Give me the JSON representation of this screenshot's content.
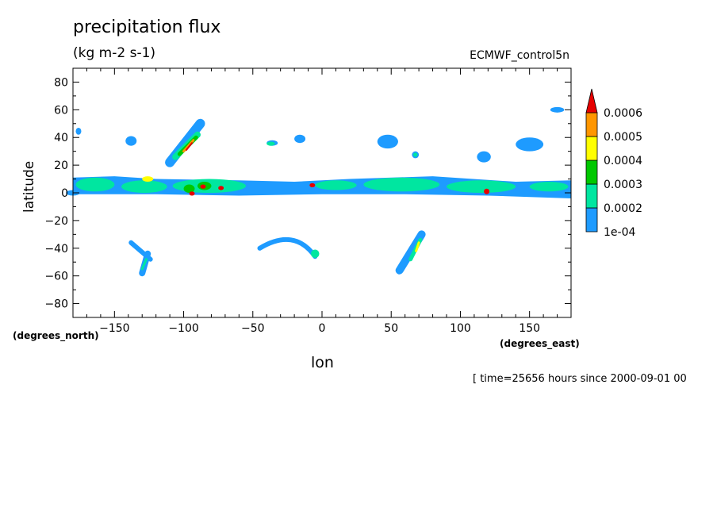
{
  "chart_data": {
    "type": "heatmap",
    "title": "precipitation flux",
    "units": "(kg m-2 s-1)",
    "dataset": "ECMWF_control5n",
    "xlabel": "lon",
    "ylabel": "latitude",
    "x_unit": "(degrees_east)",
    "y_unit": "(degrees_north)",
    "timestamp": "[ time=25656 hours since 2000-09-01 00",
    "xlim": [
      -180,
      180
    ],
    "ylim": [
      -90,
      90
    ],
    "x_ticks": [
      -150,
      -100,
      -50,
      0,
      50,
      100,
      150
    ],
    "y_ticks": [
      80,
      60,
      40,
      20,
      0,
      -20,
      -40,
      -60,
      -80
    ],
    "colorbar": {
      "levels": [
        "1e-04",
        "0.0002",
        "0.0003",
        "0.0004",
        "0.0005",
        "0.0006"
      ],
      "colors": [
        "#1e9bff",
        "#00e6a0",
        "#00c800",
        "#ffff00",
        "#ff9600",
        "#e60000"
      ]
    },
    "features": [
      {
        "region": "equatorial-band-west",
        "lon": [
          -180,
          -10
        ],
        "lat": [
          -3,
          12
        ],
        "peak": "0.0006"
      },
      {
        "region": "equatorial-band-east",
        "lon": [
          -10,
          180
        ],
        "lat": [
          -3,
          12
        ],
        "peak": "0.0006"
      },
      {
        "region": "north-atlantic-band",
        "lon": [
          -110,
          -85
        ],
        "lat": [
          22,
          55
        ],
        "peak": "0.0006"
      },
      {
        "region": "south-indian-band",
        "lon": [
          55,
          75
        ],
        "lat": [
          -55,
          -25
        ],
        "peak": "0.0004"
      },
      {
        "region": "south-pacific-band",
        "lon": [
          -40,
          -10
        ],
        "lat": [
          -48,
          -30
        ],
        "peak": "0.0003"
      },
      {
        "region": "southern-midlat-west",
        "lon": [
          -145,
          -115
        ],
        "lat": [
          -58,
          -33
        ],
        "peak": "0.0003"
      }
    ],
    "grid": false,
    "legend": "right"
  }
}
